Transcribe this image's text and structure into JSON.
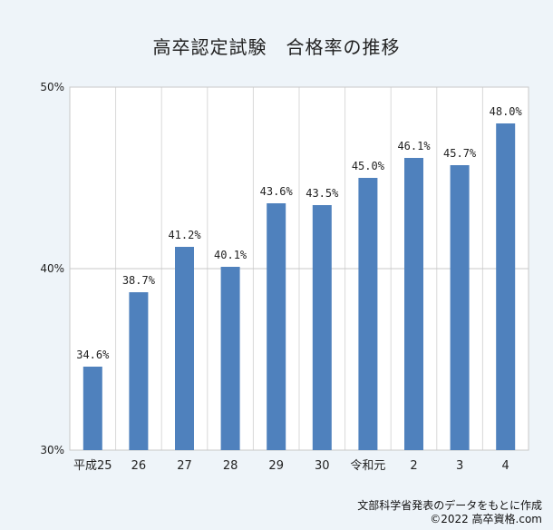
{
  "chart_data": {
    "type": "bar",
    "title": "高卒認定試験　合格率の推移",
    "categories": [
      "平成25",
      "26",
      "27",
      "28",
      "29",
      "30",
      "令和元",
      "2",
      "3",
      "4"
    ],
    "values": [
      34.6,
      38.7,
      41.2,
      40.1,
      43.6,
      43.5,
      45.0,
      46.1,
      45.7,
      48.0
    ],
    "data_labels": [
      "34.6%",
      "38.7%",
      "41.2%",
      "40.1%",
      "43.6%",
      "43.5%",
      "45.0%",
      "46.1%",
      "45.7%",
      "48.0%"
    ],
    "ylim": [
      30,
      50
    ],
    "yticks": [
      30,
      40,
      50
    ],
    "ytick_labels": [
      "30%",
      "40%",
      "50%"
    ],
    "xlabel": "",
    "ylabel": "",
    "grid": true,
    "bar_color": "#4f81bd"
  },
  "footer": {
    "source": "文部科学省発表のデータをもとに作成",
    "copyright": "©2022 高卒資格.com"
  }
}
